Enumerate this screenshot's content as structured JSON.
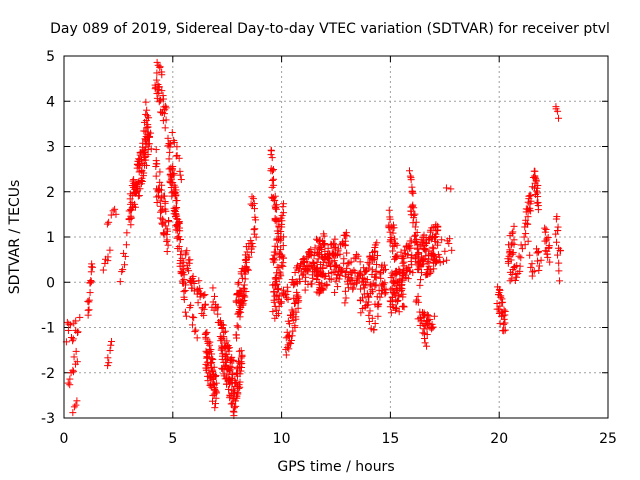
{
  "chart_data": {
    "type": "scatter",
    "title": "Day 089 of 2019, Sidereal Day-to-day VTEC variation (SDTVAR) for receiver ptvl",
    "xlabel": "GPS time / hours",
    "ylabel": "SDTVAR / TECUs",
    "xlim": [
      0,
      25
    ],
    "ylim": [
      -3,
      5
    ],
    "xticks": [
      0,
      5,
      10,
      15,
      20,
      25
    ],
    "yticks": [
      -3,
      -2,
      -1,
      0,
      1,
      2,
      3,
      4,
      5
    ],
    "grid": true,
    "marker": "+",
    "color": "#ff0000",
    "segments": [
      {
        "x": [
          0.1,
          0.7
        ],
        "y": [
          -1.2,
          -1.0
        ],
        "jitter": 0.6,
        "n": 14
      },
      {
        "x": [
          0.2,
          0.6
        ],
        "y": [
          -2.2,
          -1.6
        ],
        "jitter": 0.4,
        "n": 10
      },
      {
        "x": [
          0.4,
          0.6
        ],
        "y": [
          -2.8,
          -2.6
        ],
        "jitter": 0.2,
        "n": 4
      },
      {
        "x": [
          1.1,
          1.3
        ],
        "y": [
          -0.6,
          0.35
        ],
        "jitter": 0.4,
        "n": 16
      },
      {
        "x": [
          1.8,
          2.1
        ],
        "y": [
          0.3,
          0.6
        ],
        "jitter": 0.3,
        "n": 6
      },
      {
        "x": [
          2.0,
          2.2
        ],
        "y": [
          -1.9,
          -1.4
        ],
        "jitter": 0.3,
        "n": 6
      },
      {
        "x": [
          2.0,
          2.4
        ],
        "y": [
          1.3,
          1.6
        ],
        "jitter": 0.2,
        "n": 6
      },
      {
        "x": [
          2.6,
          2.9
        ],
        "y": [
          0.0,
          1.0
        ],
        "jitter": 0.5,
        "n": 8
      },
      {
        "x": [
          3.0,
          3.4
        ],
        "y": [
          1.5,
          2.3
        ],
        "jitter": 0.8,
        "n": 40
      },
      {
        "x": [
          3.4,
          3.9
        ],
        "y": [
          2.2,
          3.3
        ],
        "jitter": 1.0,
        "n": 60
      },
      {
        "x": [
          3.7,
          4.0
        ],
        "y": [
          3.8,
          3.2
        ],
        "jitter": 0.6,
        "n": 12
      },
      {
        "x": [
          4.2,
          4.7
        ],
        "y": [
          4.5,
          3.6
        ],
        "jitter": 0.6,
        "n": 30
      },
      {
        "x": [
          4.3,
          4.5
        ],
        "y": [
          4.85,
          4.6
        ],
        "jitter": 0.2,
        "n": 6
      },
      {
        "x": [
          4.2,
          4.8
        ],
        "y": [
          2.5,
          1.0
        ],
        "jitter": 1.0,
        "n": 50
      },
      {
        "x": [
          4.8,
          5.2
        ],
        "y": [
          2.9,
          1.3
        ],
        "jitter": 0.9,
        "n": 50
      },
      {
        "x": [
          5.0,
          5.4
        ],
        "y": [
          3.3,
          2.3
        ],
        "jitter": 0.4,
        "n": 10
      },
      {
        "x": [
          5.1,
          5.6
        ],
        "y": [
          1.8,
          -0.4
        ],
        "jitter": 0.9,
        "n": 50
      },
      {
        "x": [
          5.6,
          6.0
        ],
        "y": [
          0.6,
          -0.1
        ],
        "jitter": 0.5,
        "n": 20
      },
      {
        "x": [
          5.8,
          6.1
        ],
        "y": [
          -0.5,
          -1.2
        ],
        "jitter": 0.3,
        "n": 8
      },
      {
        "x": [
          6.1,
          6.5
        ],
        "y": [
          -0.1,
          -0.6
        ],
        "jitter": 0.6,
        "n": 20
      },
      {
        "x": [
          6.5,
          7.0
        ],
        "y": [
          -1.4,
          -2.5
        ],
        "jitter": 1.0,
        "n": 70
      },
      {
        "x": [
          6.8,
          7.2
        ],
        "y": [
          -0.3,
          -0.9
        ],
        "jitter": 0.6,
        "n": 14
      },
      {
        "x": [
          7.2,
          7.8
        ],
        "y": [
          -1.3,
          -2.3
        ],
        "jitter": 1.2,
        "n": 90
      },
      {
        "x": [
          7.8,
          8.2
        ],
        "y": [
          -2.6,
          -1.6
        ],
        "jitter": 0.8,
        "n": 40
      },
      {
        "x": [
          7.9,
          8.4
        ],
        "y": [
          -0.8,
          0.4
        ],
        "jitter": 1.0,
        "n": 60
      },
      {
        "x": [
          8.3,
          8.8
        ],
        "y": [
          0.3,
          1.1
        ],
        "jitter": 0.6,
        "n": 20
      },
      {
        "x": [
          8.6,
          8.8
        ],
        "y": [
          1.9,
          1.4
        ],
        "jitter": 0.4,
        "n": 8
      },
      {
        "x": [
          9.5,
          9.8
        ],
        "y": [
          2.7,
          1.3
        ],
        "jitter": 1.0,
        "n": 30
      },
      {
        "x": [
          9.6,
          10.1
        ],
        "y": [
          0.0,
          1.1
        ],
        "jitter": 1.4,
        "n": 70
      },
      {
        "x": [
          9.7,
          10.3
        ],
        "y": [
          -0.6,
          -0.2
        ],
        "jitter": 0.4,
        "n": 20
      },
      {
        "x": [
          10.2,
          10.8
        ],
        "y": [
          -1.4,
          -0.3
        ],
        "jitter": 0.7,
        "n": 40
      },
      {
        "x": [
          10.5,
          11.0
        ],
        "y": [
          0.0,
          0.3
        ],
        "jitter": 0.5,
        "n": 20
      },
      {
        "x": [
          11.0,
          12.0
        ],
        "y": [
          0.2,
          0.7
        ],
        "jitter": 0.9,
        "n": 80
      },
      {
        "x": [
          11.6,
          12.5
        ],
        "y": [
          0.0,
          0.6
        ],
        "jitter": 0.8,
        "n": 70
      },
      {
        "x": [
          12.4,
          13.0
        ],
        "y": [
          0.1,
          0.8
        ],
        "jitter": 0.8,
        "n": 40
      },
      {
        "x": [
          12.9,
          13.6
        ],
        "y": [
          -0.1,
          0.5
        ],
        "jitter": 0.8,
        "n": 40
      },
      {
        "x": [
          13.6,
          14.4
        ],
        "y": [
          -0.3,
          0.4
        ],
        "jitter": 1.0,
        "n": 60
      },
      {
        "x": [
          13.9,
          14.3
        ],
        "y": [
          -0.6,
          -1.1
        ],
        "jitter": 0.4,
        "n": 10
      },
      {
        "x": [
          14.3,
          14.8
        ],
        "y": [
          -0.4,
          0.2
        ],
        "jitter": 1.0,
        "n": 30
      },
      {
        "x": [
          14.9,
          15.3
        ],
        "y": [
          1.5,
          0.5
        ],
        "jitter": 0.8,
        "n": 30
      },
      {
        "x": [
          15.0,
          15.6
        ],
        "y": [
          -0.3,
          -0.1
        ],
        "jitter": 1.0,
        "n": 60
      },
      {
        "x": [
          15.5,
          16.0
        ],
        "y": [
          0.3,
          0.6
        ],
        "jitter": 0.8,
        "n": 40
      },
      {
        "x": [
          15.9,
          16.3
        ],
        "y": [
          2.1,
          0.3
        ],
        "jitter": 1.0,
        "n": 40
      },
      {
        "x": [
          16.2,
          16.7
        ],
        "y": [
          -0.4,
          -1.2
        ],
        "jitter": 0.6,
        "n": 20
      },
      {
        "x": [
          16.3,
          17.2
        ],
        "y": [
          0.4,
          0.9
        ],
        "jitter": 1.0,
        "n": 90
      },
      {
        "x": [
          16.5,
          17.0
        ],
        "y": [
          -0.8,
          -0.9
        ],
        "jitter": 0.3,
        "n": 20
      },
      {
        "x": [
          17.0,
          17.8
        ],
        "y": [
          0.6,
          0.7
        ],
        "jitter": 0.6,
        "n": 14
      },
      {
        "x": [
          17.6,
          17.8
        ],
        "y": [
          2.1,
          2.1
        ],
        "jitter": 0.1,
        "n": 2
      },
      {
        "x": [
          19.9,
          20.3
        ],
        "y": [
          -0.3,
          -1.0
        ],
        "jitter": 0.8,
        "n": 30
      },
      {
        "x": [
          20.4,
          20.7
        ],
        "y": [
          0.6,
          1.0
        ],
        "jitter": 0.6,
        "n": 20
      },
      {
        "x": [
          20.5,
          21.0
        ],
        "y": [
          -0.1,
          0.5
        ],
        "jitter": 0.6,
        "n": 16
      },
      {
        "x": [
          21.0,
          21.3
        ],
        "y": [
          0.8,
          1.0
        ],
        "jitter": 0.3,
        "n": 6
      },
      {
        "x": [
          21.2,
          21.5
        ],
        "y": [
          1.3,
          1.9
        ],
        "jitter": 0.5,
        "n": 20
      },
      {
        "x": [
          21.4,
          21.6
        ],
        "y": [
          0.4,
          0.1
        ],
        "jitter": 0.4,
        "n": 6
      },
      {
        "x": [
          21.6,
          21.8
        ],
        "y": [
          2.4,
          1.8
        ],
        "jitter": 0.5,
        "n": 20
      },
      {
        "x": [
          21.7,
          21.9
        ],
        "y": [
          0.8,
          0.3
        ],
        "jitter": 0.4,
        "n": 8
      },
      {
        "x": [
          22.1,
          22.3
        ],
        "y": [
          1.0,
          0.6
        ],
        "jitter": 0.6,
        "n": 16
      },
      {
        "x": [
          22.6,
          22.7
        ],
        "y": [
          3.95,
          3.7
        ],
        "jitter": 0.2,
        "n": 4
      },
      {
        "x": [
          22.6,
          22.8
        ],
        "y": [
          1.3,
          0.3
        ],
        "jitter": 0.8,
        "n": 14
      }
    ]
  }
}
